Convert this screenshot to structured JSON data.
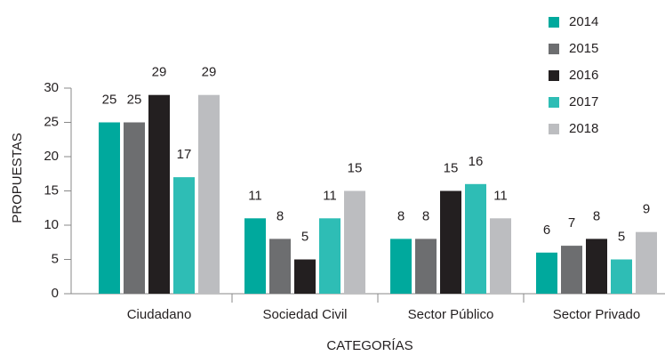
{
  "chart_data": {
    "type": "bar",
    "xlabel": "CATEGORÍAS",
    "ylabel": "PROPUESTAS",
    "categories": [
      "Ciudadano",
      "Sociedad Civil",
      "Sector Público",
      "Sector Privado"
    ],
    "series": [
      {
        "name": "2014",
        "color": "#00a99d",
        "values": [
          25,
          11,
          8,
          6
        ]
      },
      {
        "name": "2015",
        "color": "#6d6e70",
        "values": [
          25,
          8,
          8,
          7
        ]
      },
      {
        "name": "2016",
        "color": "#231f20",
        "values": [
          29,
          5,
          15,
          8
        ]
      },
      {
        "name": "2017",
        "color": "#2ebdb5",
        "values": [
          17,
          11,
          16,
          5
        ]
      },
      {
        "name": "2018",
        "color": "#bcbdc0",
        "values": [
          29,
          15,
          11,
          9
        ]
      }
    ],
    "ylim": [
      0,
      30
    ],
    "yticks": [
      0,
      5,
      10,
      15,
      20,
      25,
      30
    ],
    "legend": "top-right"
  }
}
